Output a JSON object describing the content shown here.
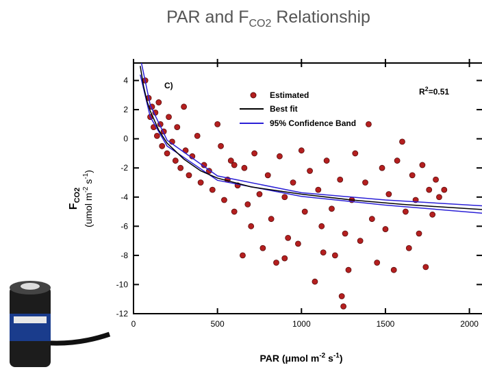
{
  "chart_data": {
    "type": "scatter",
    "title": [
      "PAR and F",
      "CO2",
      " Relationship"
    ],
    "x_label": [
      "PAR (μmol m",
      "-2",
      " s",
      "-1",
      ")"
    ],
    "y_label": [
      "F",
      "CO2",
      "(umol m",
      "-2",
      " s",
      "-1",
      ")"
    ],
    "annotation": "C)",
    "r2_label": [
      "R",
      "2",
      "=0.51"
    ],
    "xlim": [
      0,
      2075
    ],
    "ylim": [
      -12,
      5.2
    ],
    "xticks": [
      0,
      500,
      1000,
      1500,
      2000
    ],
    "yticks": [
      4,
      2,
      0,
      -2,
      -4,
      -6,
      -8,
      -10,
      -12
    ],
    "legend": "top",
    "series": [
      {
        "name": "Estimated",
        "color": "#b41f1f",
        "x": [
          70,
          90,
          100,
          110,
          120,
          130,
          140,
          150,
          160,
          170,
          180,
          200,
          210,
          230,
          250,
          260,
          280,
          300,
          310,
          330,
          350,
          380,
          400,
          420,
          450,
          470,
          500,
          520,
          540,
          560,
          580,
          600,
          620,
          650,
          660,
          680,
          700,
          720,
          750,
          770,
          800,
          820,
          850,
          870,
          900,
          920,
          950,
          980,
          1000,
          1020,
          1050,
          1080,
          1100,
          1120,
          1150,
          1180,
          1200,
          1230,
          1250,
          1260,
          1280,
          1300,
          1320,
          1350,
          1380,
          1400,
          1420,
          1450,
          1480,
          1500,
          1520,
          1550,
          1570,
          1600,
          1620,
          1640,
          1660,
          1680,
          1700,
          1720,
          1740,
          1760,
          1780,
          1800,
          1820,
          1850,
          1240,
          1130,
          900,
          600
        ],
        "values": [
          4.0,
          2.8,
          1.5,
          2.2,
          0.8,
          1.8,
          0.2,
          2.5,
          1.0,
          -0.5,
          0.5,
          -1.0,
          1.5,
          -0.2,
          -1.5,
          0.8,
          -2.0,
          2.2,
          -0.8,
          -2.5,
          -1.2,
          0.2,
          -3.0,
          -1.8,
          -2.2,
          -3.5,
          1.0,
          -0.5,
          -4.2,
          -2.8,
          -1.5,
          -5.0,
          -3.2,
          -8.0,
          -2.0,
          -4.5,
          -6.0,
          -1.0,
          -3.8,
          -7.5,
          -2.5,
          -5.5,
          -8.5,
          -1.2,
          -4.0,
          -6.8,
          -3.0,
          -7.2,
          -0.8,
          -5.0,
          -2.2,
          -9.8,
          -3.5,
          -6.0,
          -1.5,
          -4.8,
          -8.0,
          -2.8,
          -11.5,
          -6.5,
          -9.0,
          -4.2,
          -1.0,
          -7.0,
          -3.0,
          1.0,
          -5.5,
          -8.5,
          -2.0,
          -6.2,
          -3.8,
          -9.0,
          -1.5,
          -0.2,
          -5.0,
          -7.5,
          -2.5,
          -4.2,
          -6.5,
          -1.8,
          -8.8,
          -3.5,
          -5.2,
          -2.8,
          -4.0,
          -3.5,
          -10.8,
          -7.8,
          -8.2,
          -1.8
        ]
      },
      {
        "name": "Best fit",
        "color": "#000000",
        "x": [
          40,
          60,
          80,
          100,
          150,
          200,
          300,
          400,
          500,
          700,
          1000,
          1300,
          1600,
          2000,
          2075
        ],
        "values": [
          5.0,
          3.6,
          2.6,
          1.9,
          0.6,
          -0.3,
          -1.4,
          -2.2,
          -2.7,
          -3.3,
          -3.8,
          -4.2,
          -4.5,
          -4.8,
          -4.85
        ]
      },
      {
        "name": "95% Confidence Band",
        "color": "#2a1fd6",
        "x": [
          40,
          100,
          200,
          500,
          1000,
          1500,
          2075
        ],
        "upper": [
          5.6,
          2.3,
          -0.1,
          -2.55,
          -3.7,
          -4.2,
          -4.6
        ],
        "lower": [
          4.4,
          1.5,
          -0.5,
          -2.85,
          -3.95,
          -4.55,
          -5.1
        ]
      }
    ]
  }
}
